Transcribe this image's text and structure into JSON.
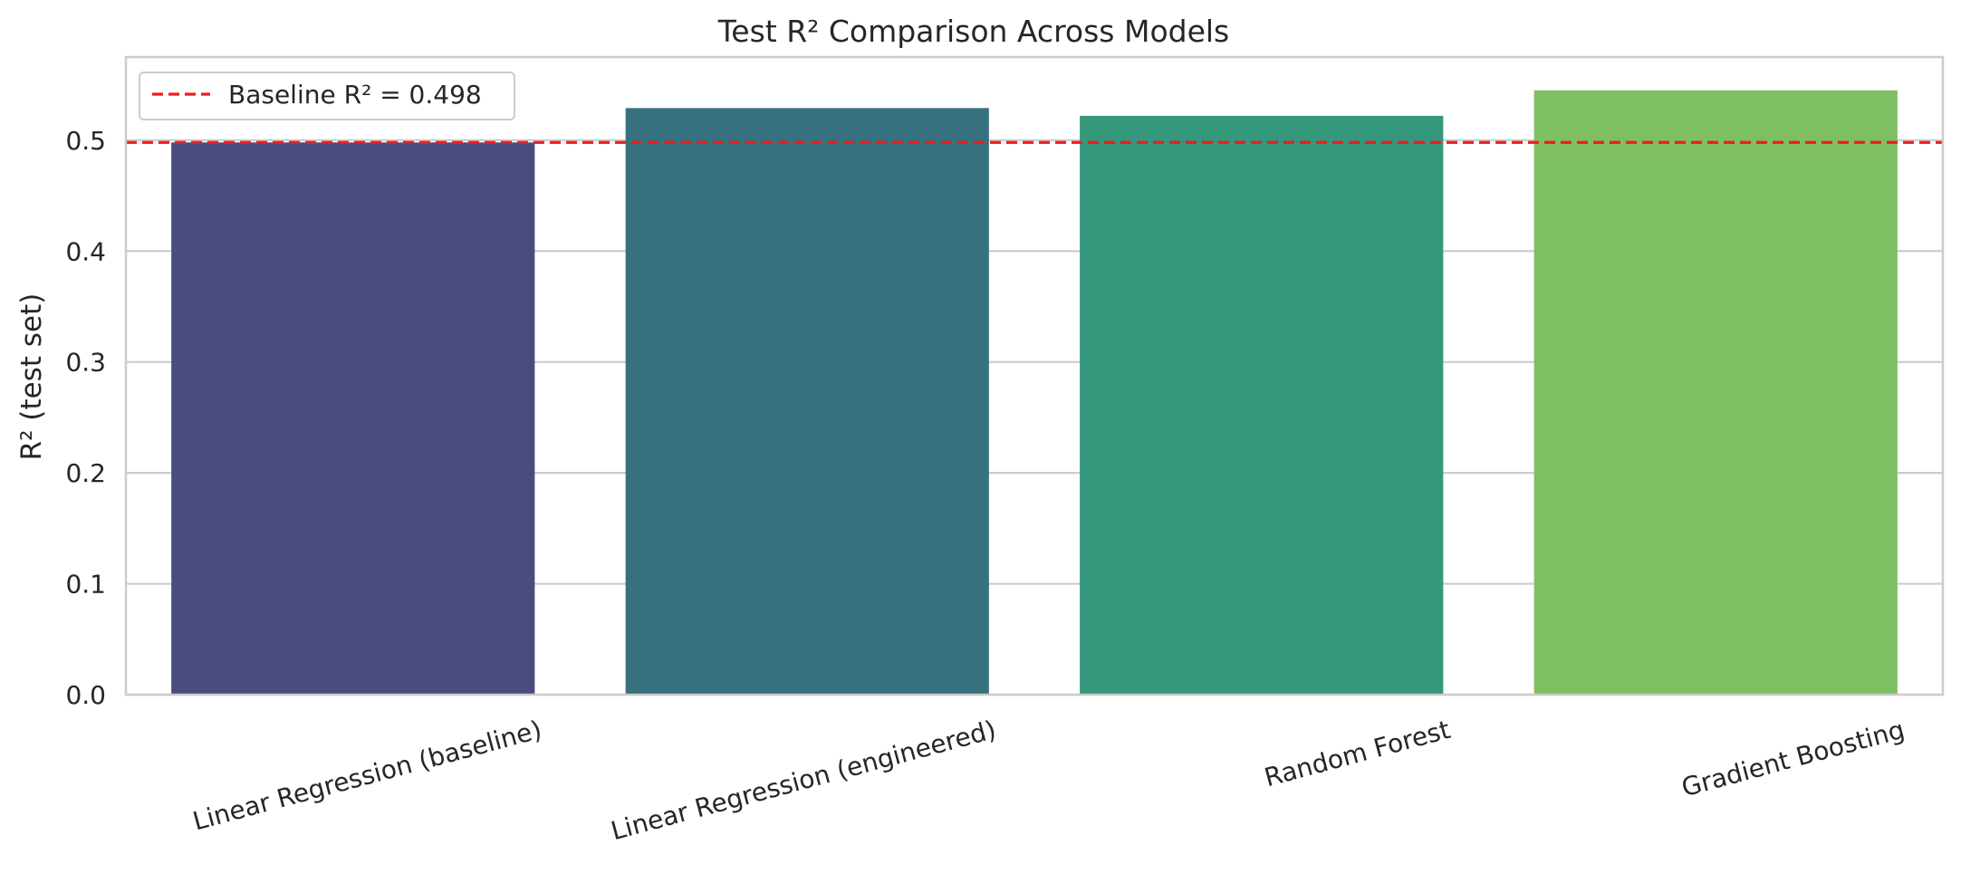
{
  "chart_data": {
    "type": "bar",
    "title": "Test R² Comparison Across Models",
    "xlabel": "",
    "ylabel": "R² (test set)",
    "categories": [
      "Linear Regression (baseline)",
      "Linear Regression (engineered)",
      "Random Forest",
      "Gradient Boosting"
    ],
    "values": [
      0.498,
      0.529,
      0.522,
      0.545
    ],
    "bar_colors": [
      "#4a4c7d",
      "#37717f",
      "#35977b",
      "#7ec061"
    ],
    "ylim": [
      0,
      0.575
    ],
    "yticks": [
      0.0,
      0.1,
      0.2,
      0.3,
      0.4,
      0.5
    ],
    "ytick_labels": [
      "0.0",
      "0.1",
      "0.2",
      "0.3",
      "0.4",
      "0.5"
    ],
    "grid": "horizontal",
    "reference_line": {
      "value": 0.498,
      "label": "Baseline R² = 0.498",
      "color": "#ee1c1c",
      "style": "dashed"
    },
    "legend": {
      "placement": "top-left"
    }
  }
}
